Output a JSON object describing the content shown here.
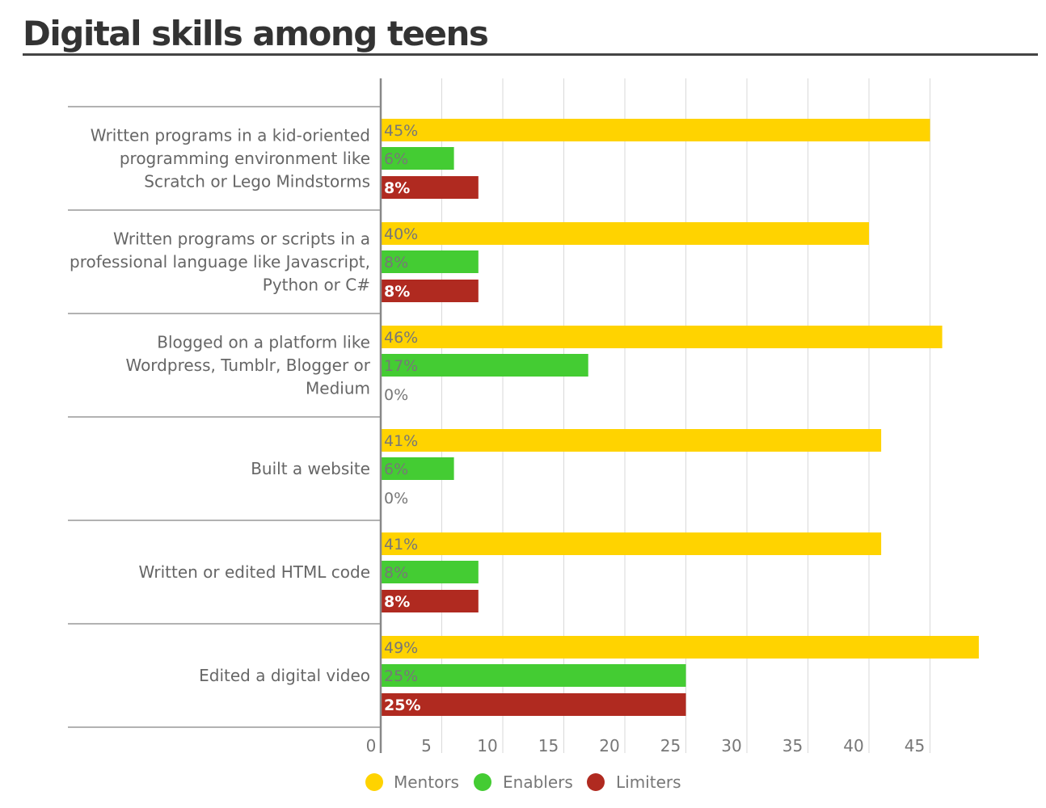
{
  "title": "Digital skills among teens",
  "chart_data": {
    "type": "bar",
    "orientation": "horizontal",
    "title": "Digital skills among teens",
    "xlabel": "",
    "ylabel": "",
    "xlim": [
      0,
      50
    ],
    "x_ticks": [
      0,
      5,
      10,
      15,
      20,
      25,
      30,
      35,
      40,
      45
    ],
    "grid": true,
    "legend_position": "bottom",
    "categories": [
      "Written programs in a kid-oriented programming environment like Scratch or Lego Mindstorms",
      "Written programs or scripts in a professional language like Javascript, Python or C#",
      "Blogged on a platform like Wordpress, Tumblr, Blogger or Medium",
      "Built a website",
      "Written or edited HTML code",
      "Edited a digital video"
    ],
    "category_label_lines": [
      [
        "Written programs in a kid-oriented",
        "programming environment like",
        "Scratch or Lego Mindstorms"
      ],
      [
        "Written programs or scripts in a",
        "professional language like Javascript,",
        "Python or C#"
      ],
      [
        "Blogged on a platform like",
        "Wordpress, Tumblr, Blogger or",
        "Medium"
      ],
      [
        "Built a website"
      ],
      [
        "Written or edited HTML code"
      ],
      [
        "Edited a digital video"
      ]
    ],
    "series": [
      {
        "name": "Mentors",
        "color": "#FFD300",
        "label_color": "#777777",
        "values": [
          45,
          40,
          46,
          41,
          41,
          49
        ]
      },
      {
        "name": "Enablers",
        "color": "#44CC33",
        "label_color": "#777777",
        "values": [
          6,
          8,
          17,
          6,
          8,
          25
        ]
      },
      {
        "name": "Limiters",
        "color": "#B02A20",
        "label_color": "#ffffff",
        "values": [
          8,
          8,
          0,
          0,
          8,
          25
        ]
      }
    ]
  }
}
